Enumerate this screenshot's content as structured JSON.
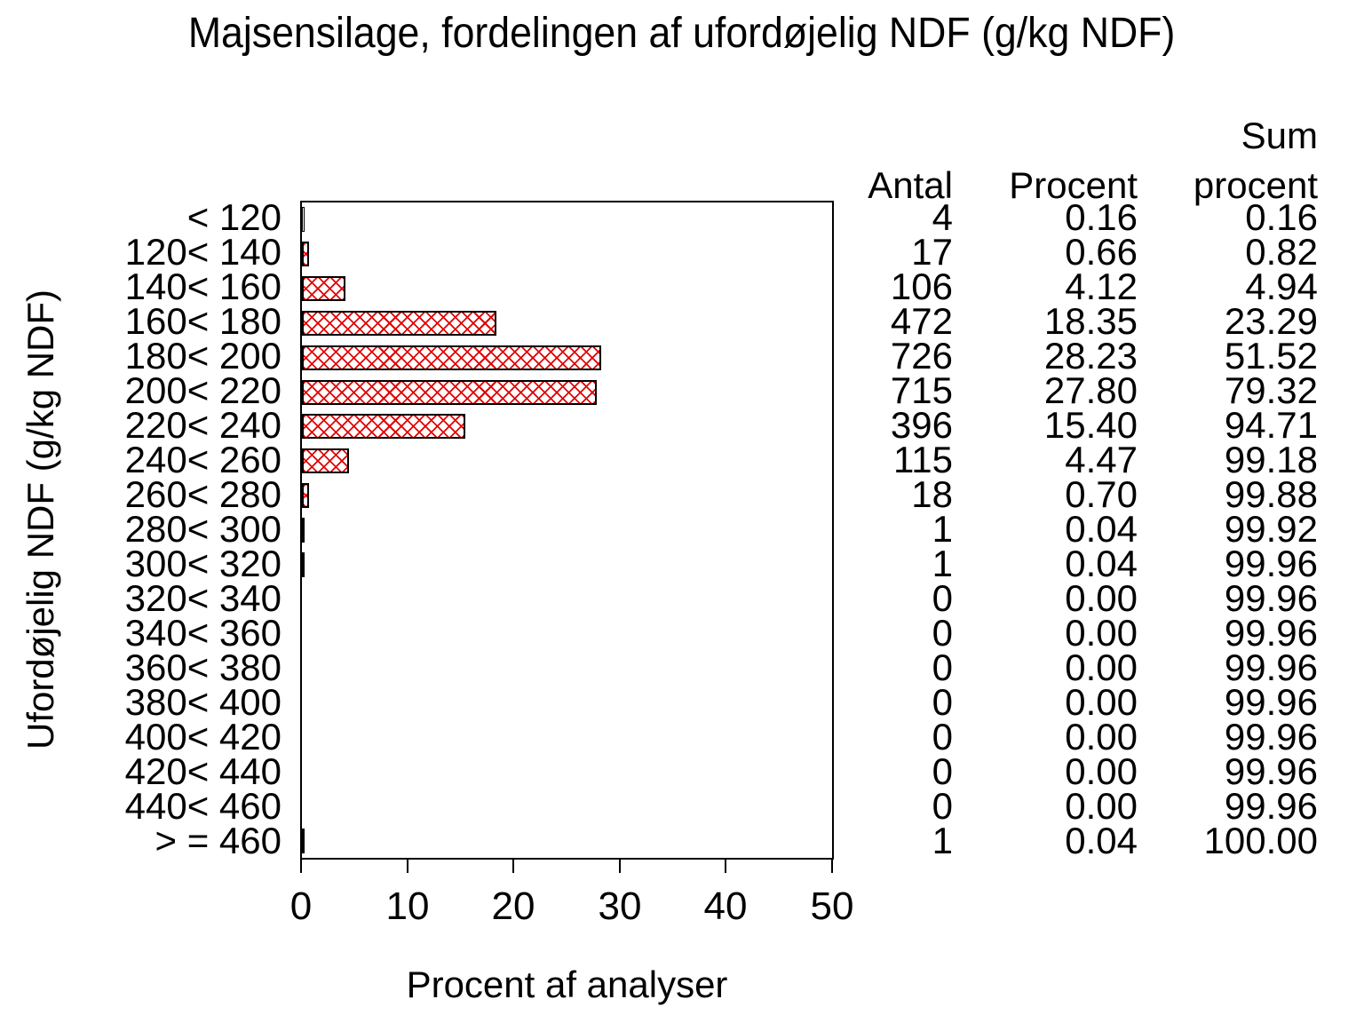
{
  "chart_data": {
    "type": "bar",
    "orientation": "horizontal",
    "title": "Majsensilage, fordelingen af ufordøjelig NDF (g/kg NDF)",
    "xlabel": "Procent af analyser",
    "ylabel": "Ufordøjelig NDF (g/kg NDF)",
    "xlim": [
      0,
      50
    ],
    "xticks": [
      0,
      10,
      20,
      30,
      40,
      50
    ],
    "grid": "off",
    "bar_style": "red diagonal crosshatch with black outline",
    "bar_color": "#e00000",
    "categories": [
      "< 120",
      "120< 140",
      "140< 160",
      "160< 180",
      "180< 200",
      "200< 220",
      "220< 240",
      "240< 260",
      "260< 280",
      "280< 300",
      "300< 320",
      "320< 340",
      "340< 360",
      "360< 380",
      "380< 400",
      "400< 420",
      "420< 440",
      "440< 460",
      "> = 460"
    ],
    "values": [
      0.16,
      0.66,
      4.12,
      18.35,
      28.23,
      27.8,
      15.4,
      4.47,
      0.7,
      0.04,
      0.04,
      0,
      0,
      0,
      0,
      0,
      0,
      0,
      0.04
    ]
  },
  "table": {
    "headers": {
      "sum_line1": "Sum",
      "antal": "Antal",
      "procent": "Procent",
      "sum_line2": "procent"
    },
    "rows": [
      {
        "antal": "4",
        "procent": "0.16",
        "sum": "0.16"
      },
      {
        "antal": "17",
        "procent": "0.66",
        "sum": "0.82"
      },
      {
        "antal": "106",
        "procent": "4.12",
        "sum": "4.94"
      },
      {
        "antal": "472",
        "procent": "18.35",
        "sum": "23.29"
      },
      {
        "antal": "726",
        "procent": "28.23",
        "sum": "51.52"
      },
      {
        "antal": "715",
        "procent": "27.80",
        "sum": "79.32"
      },
      {
        "antal": "396",
        "procent": "15.40",
        "sum": "94.71"
      },
      {
        "antal": "115",
        "procent": "4.47",
        "sum": "99.18"
      },
      {
        "antal": "18",
        "procent": "0.70",
        "sum": "99.88"
      },
      {
        "antal": "1",
        "procent": "0.04",
        "sum": "99.92"
      },
      {
        "antal": "1",
        "procent": "0.04",
        "sum": "99.96"
      },
      {
        "antal": "0",
        "procent": "0.00",
        "sum": "99.96"
      },
      {
        "antal": "0",
        "procent": "0.00",
        "sum": "99.96"
      },
      {
        "antal": "0",
        "procent": "0.00",
        "sum": "99.96"
      },
      {
        "antal": "0",
        "procent": "0.00",
        "sum": "99.96"
      },
      {
        "antal": "0",
        "procent": "0.00",
        "sum": "99.96"
      },
      {
        "antal": "0",
        "procent": "0.00",
        "sum": "99.96"
      },
      {
        "antal": "0",
        "procent": "0.00",
        "sum": "99.96"
      },
      {
        "antal": "1",
        "procent": "0.04",
        "sum": "100.00"
      }
    ]
  }
}
